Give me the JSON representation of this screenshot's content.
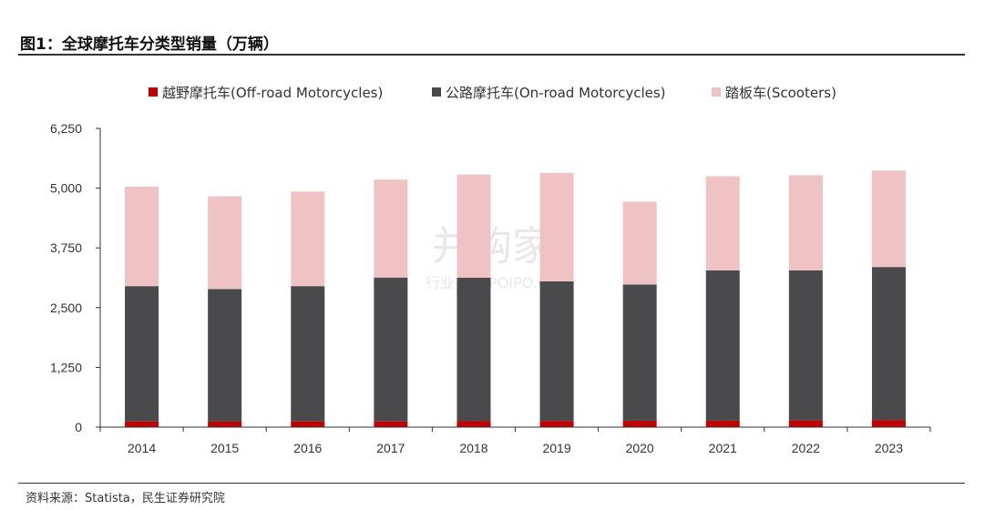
{
  "header": {
    "title": "图1：全球摩托车分类型销量（万辆）"
  },
  "footer": {
    "source": "资料来源：Statista，民生证券研究院"
  },
  "watermark": {
    "main": "并购家",
    "sub": "行业报告 POIPO.CN"
  },
  "colors": {
    "offroad": "#c00000",
    "onroad": "#4a4a4c",
    "scooter": "#efc3c3",
    "axis": "#333333"
  },
  "chart_data": {
    "type": "bar",
    "stacked": true,
    "categories": [
      "2014",
      "2015",
      "2016",
      "2017",
      "2018",
      "2019",
      "2020",
      "2021",
      "2022",
      "2023"
    ],
    "series": [
      {
        "name": "越野摩托车(Off-road Motorcycles)",
        "color": "#c00000",
        "values": [
          120,
          115,
          120,
          120,
          125,
          130,
          135,
          135,
          140,
          150
        ]
      },
      {
        "name": "公路摩托车(On-road Motorcycles)",
        "color": "#4a4a4c",
        "values": [
          2830,
          2775,
          2830,
          3010,
          3000,
          2920,
          2850,
          3145,
          3140,
          3200
        ]
      },
      {
        "name": "踏板车(Scooters)",
        "color": "#efc3c3",
        "values": [
          2080,
          1940,
          1980,
          2050,
          2160,
          2270,
          1730,
          1970,
          1990,
          2020
        ]
      }
    ],
    "yticks": [
      "0",
      "1,250",
      "2,500",
      "3,750",
      "5,000",
      "6,250"
    ],
    "ylim": [
      0,
      6250
    ],
    "legend_position": "top"
  }
}
